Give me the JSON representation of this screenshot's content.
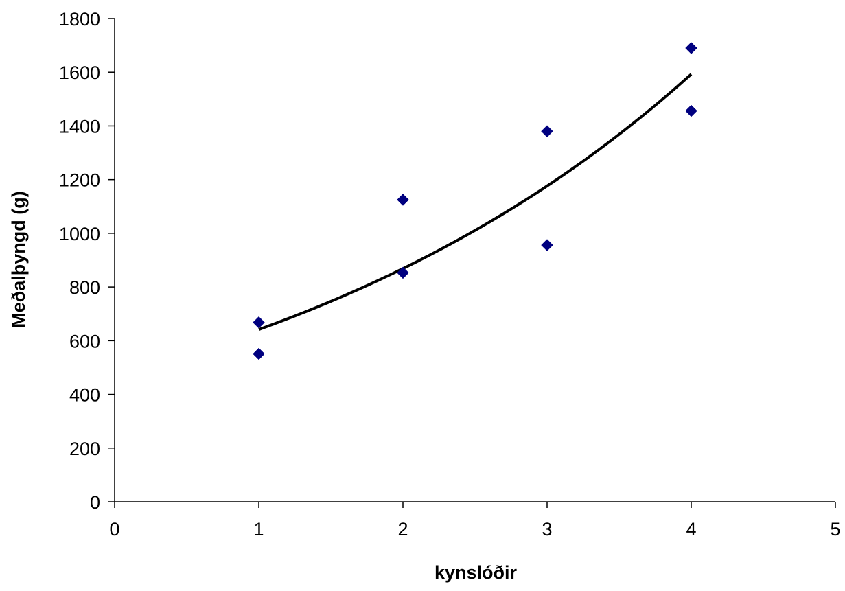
{
  "chart_data": {
    "type": "scatter",
    "title": "",
    "xlabel": "kynslóðir",
    "ylabel": "Meðalþyngd (g)",
    "xlim": [
      0,
      5
    ],
    "ylim": [
      0,
      1800
    ],
    "x_ticks": [
      0,
      1,
      2,
      3,
      4,
      5
    ],
    "y_ticks": [
      0,
      200,
      400,
      600,
      800,
      1000,
      1200,
      1400,
      1600,
      1800
    ],
    "grid": false,
    "legend": "none",
    "series": [
      {
        "marker": "diamond",
        "color": "#000080",
        "points": [
          {
            "x": 1,
            "y": 668
          },
          {
            "x": 1,
            "y": 551
          },
          {
            "x": 2,
            "y": 1125
          },
          {
            "x": 2,
            "y": 853
          },
          {
            "x": 3,
            "y": 1380
          },
          {
            "x": 3,
            "y": 956
          },
          {
            "x": 4,
            "y": 1690
          },
          {
            "x": 4,
            "y": 1456
          }
        ]
      }
    ],
    "trendline": {
      "type": "exponential",
      "color": "#000000",
      "x_range": [
        1,
        4
      ],
      "points": [
        {
          "x": 1,
          "y": 650
        },
        {
          "x": 1.5,
          "y": 740
        },
        {
          "x": 2,
          "y": 865
        },
        {
          "x": 2.5,
          "y": 1005
        },
        {
          "x": 3,
          "y": 1175
        },
        {
          "x": 3.5,
          "y": 1372
        },
        {
          "x": 4,
          "y": 1600
        }
      ]
    }
  }
}
